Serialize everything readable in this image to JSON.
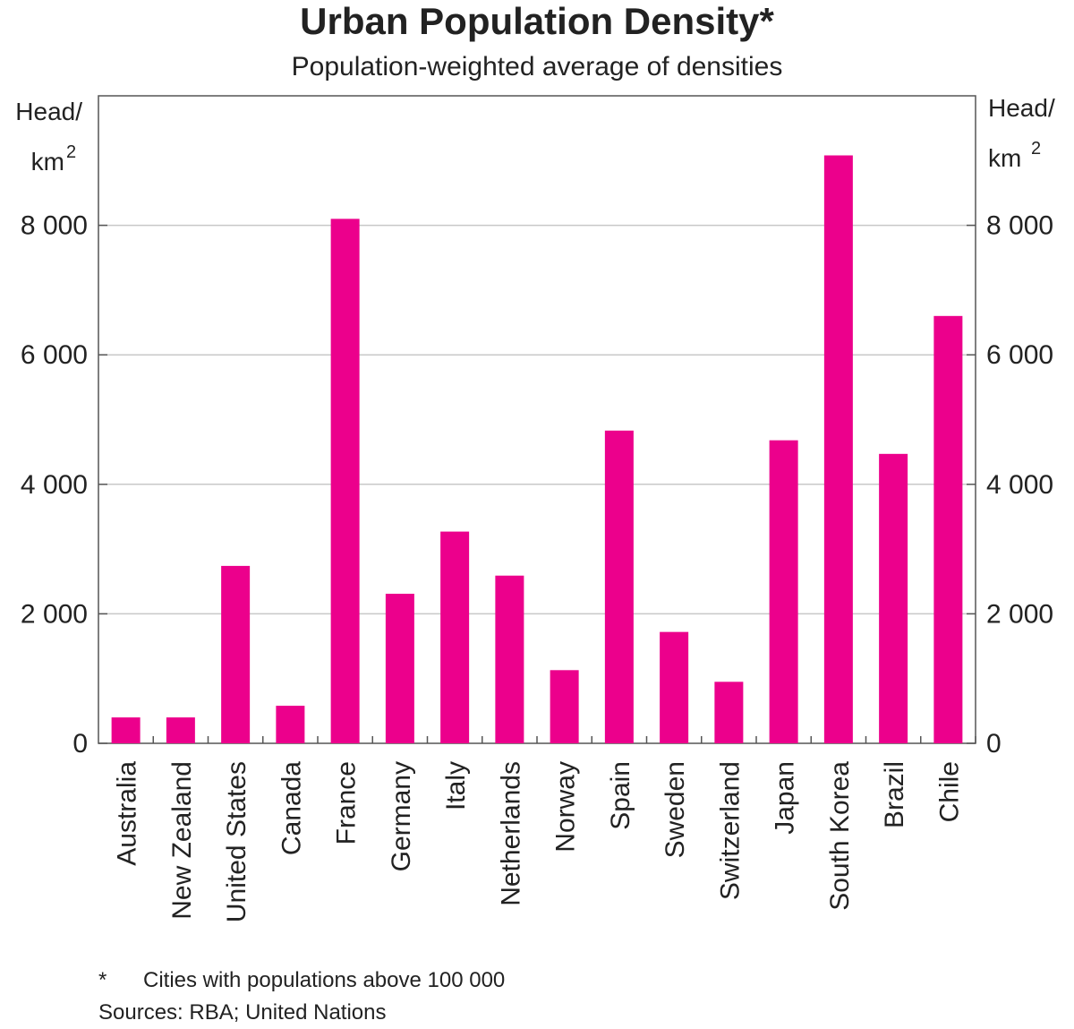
{
  "chart_data": {
    "type": "bar",
    "title": "Urban Population Density*",
    "subtitle": "Population-weighted average of densities",
    "y_unit": {
      "line1": "Head/",
      "line2": "km",
      "sup": "2"
    },
    "categories": [
      "Australia",
      "New Zealand",
      "United States",
      "Canada",
      "France",
      "Germany",
      "Italy",
      "Netherlands",
      "Norway",
      "Spain",
      "Sweden",
      "Switzerland",
      "Japan",
      "South Korea",
      "Brazil",
      "Chile"
    ],
    "values": [
      400,
      400,
      2740,
      580,
      8100,
      2310,
      3270,
      2590,
      1130,
      4830,
      1720,
      950,
      4680,
      9080,
      4470,
      6600
    ],
    "color": "#ec008c",
    "ylim": [
      0,
      10000
    ],
    "yticks": [
      0,
      {
        "value": 2000,
        "label": "2 000"
      },
      {
        "value": 4000,
        "label": "4 000"
      },
      {
        "value": 6000,
        "label": "6 000"
      },
      {
        "value": 8000,
        "label": "8 000"
      }
    ],
    "y2lim": [
      0,
      10000
    ],
    "y2ticks": [
      0,
      {
        "value": 2000,
        "label": "2 000"
      },
      {
        "value": 4000,
        "label": "4 000"
      },
      {
        "value": 6000,
        "label": "6 000"
      },
      {
        "value": 8000,
        "label": "8 000"
      }
    ],
    "grid": true,
    "footnote": {
      "marker": "*",
      "text": "Cities with populations above 100 000"
    },
    "source": "Sources: RBA; United Nations"
  }
}
